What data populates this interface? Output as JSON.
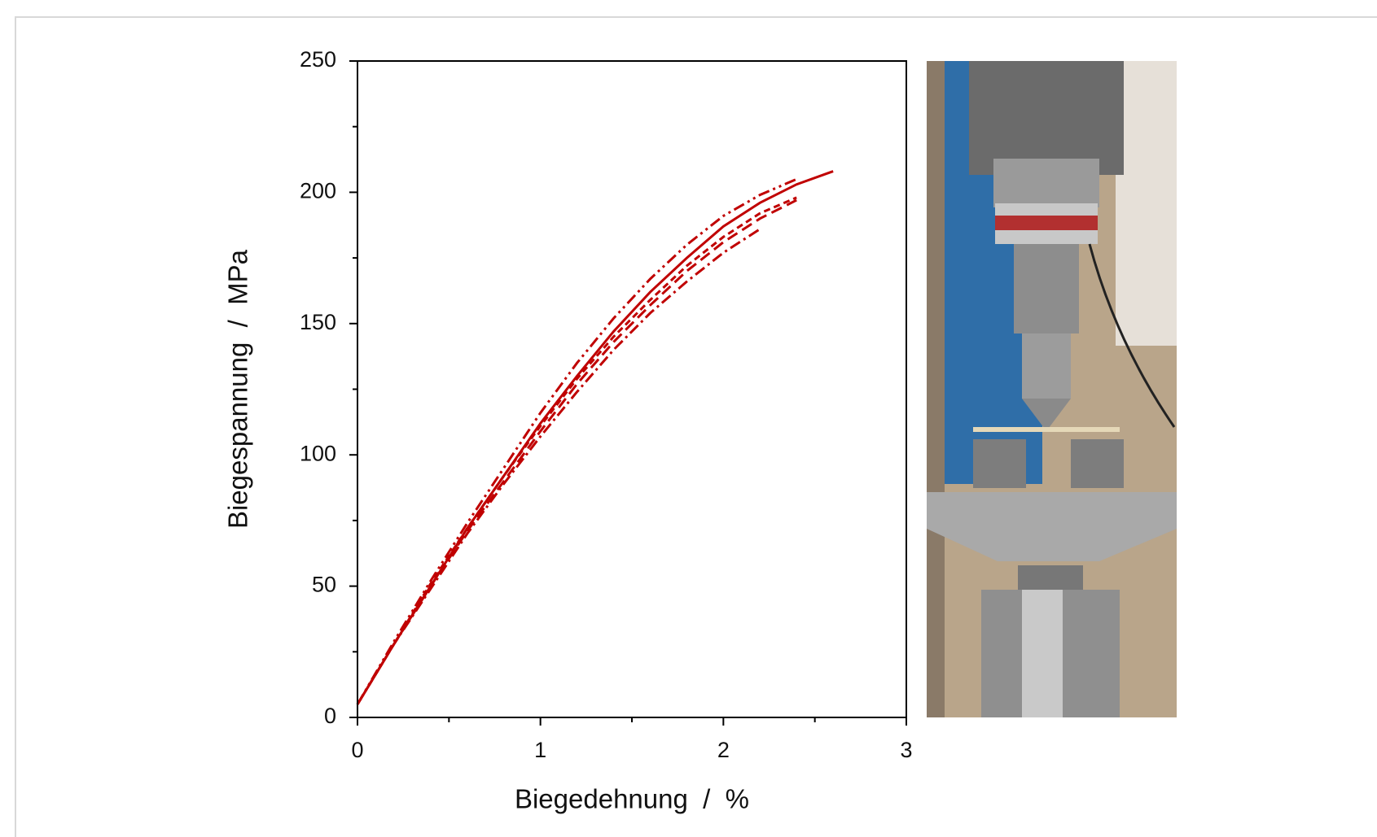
{
  "chart_data": {
    "type": "line",
    "xlabel": "Biegedehnung  /  %",
    "ylabel": "Biegespannung  /  MPa",
    "x": [
      0,
      0.2,
      0.4,
      0.6,
      0.8,
      1.0,
      1.2,
      1.4,
      1.6,
      1.8,
      2.0,
      2.2,
      2.4,
      2.6
    ],
    "series": [
      {
        "color": "#c00000",
        "dash": "none",
        "values": [
          5,
          28,
          50,
          72,
          92,
          112,
          130,
          147,
          162,
          175,
          187,
          196,
          203,
          208
        ]
      },
      {
        "color": "#c00000",
        "dash": "14 5 3 5 3 5",
        "values": [
          5,
          29,
          52,
          74,
          95,
          116,
          135,
          152,
          167,
          180,
          191,
          199,
          205,
          null
        ]
      },
      {
        "color": "#c00000",
        "dash": "14 7",
        "values": [
          5,
          28,
          50,
          71,
          90,
          109,
          127,
          143,
          157,
          170,
          181,
          190,
          197,
          null
        ]
      },
      {
        "color": "#c00000",
        "dash": "14 5 3 5",
        "values": [
          5,
          28,
          49,
          70,
          89,
          107,
          124,
          140,
          154,
          166,
          177,
          186,
          null,
          null
        ]
      },
      {
        "color": "#c00000",
        "dash": "8 5",
        "values": [
          5,
          28,
          51,
          72,
          92,
          111,
          129,
          145,
          159,
          172,
          183,
          192,
          198,
          null
        ]
      }
    ],
    "xlim": [
      0,
      3
    ],
    "xticks": [
      0,
      1,
      2,
      3
    ],
    "xminor": [
      0.5,
      1.5,
      2.5
    ],
    "ylim": [
      0,
      250
    ],
    "yticks": [
      0,
      50,
      100,
      150,
      200,
      250
    ],
    "yminor": [
      25,
      75,
      125,
      175,
      225
    ]
  }
}
